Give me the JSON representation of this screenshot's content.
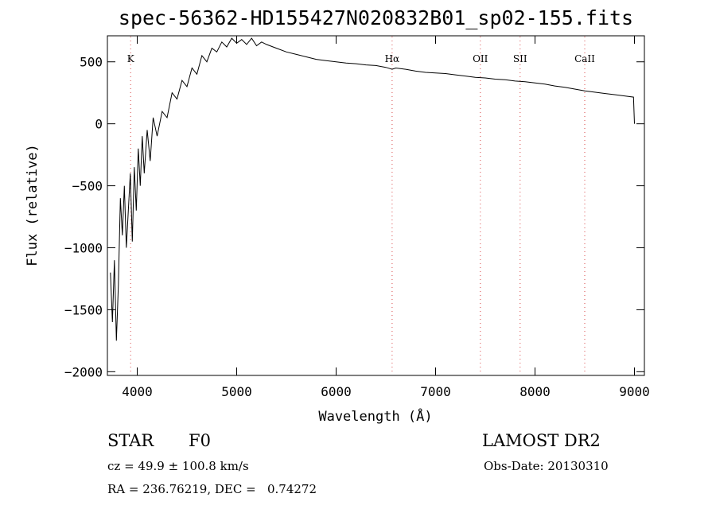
{
  "chart_data": {
    "type": "line",
    "title": "spec-56362-HD155427N020832B01_sp02-155.fits",
    "xlabel": "Wavelength (Å)",
    "ylabel": "Flux (relative)",
    "xlim": [
      3700,
      9100
    ],
    "ylim": [
      -2030,
      710
    ],
    "x_ticks": [
      4000,
      5000,
      6000,
      7000,
      8000,
      9000
    ],
    "y_ticks": [
      -2000,
      -1500,
      -1000,
      -500,
      0,
      500
    ],
    "grid": false,
    "series": [
      {
        "x": [
          3730,
          3750,
          3770,
          3790,
          3810,
          3830,
          3850,
          3870,
          3890,
          3910,
          3930,
          3950,
          3970,
          3990,
          4010,
          4030,
          4050,
          4070,
          4100,
          4130,
          4160,
          4200,
          4250,
          4300,
          4350,
          4400,
          4450,
          4500,
          4550,
          4600,
          4650,
          4700,
          4750,
          4800,
          4850,
          4900,
          4950,
          5000,
          5050,
          5100,
          5150,
          5200,
          5250,
          5300,
          5400,
          5500,
          5600,
          5700,
          5800,
          5900,
          6000,
          6100,
          6200,
          6300,
          6400,
          6500,
          6563,
          6600,
          6700,
          6800,
          6900,
          7000,
          7100,
          7200,
          7300,
          7400,
          7500,
          7600,
          7700,
          7800,
          7900,
          8000,
          8100,
          8200,
          8300,
          8400,
          8500,
          8600,
          8700,
          8800,
          8900,
          8990,
          9000
        ],
        "values": [
          -1200,
          -1600,
          -1100,
          -1750,
          -1300,
          -600,
          -900,
          -500,
          -1000,
          -700,
          -400,
          -950,
          -350,
          -700,
          -200,
          -500,
          -100,
          -400,
          -50,
          -300,
          50,
          -100,
          100,
          50,
          250,
          200,
          350,
          300,
          450,
          400,
          550,
          500,
          610,
          580,
          660,
          620,
          690,
          650,
          680,
          640,
          690,
          630,
          660,
          640,
          610,
          580,
          560,
          540,
          520,
          510,
          500,
          490,
          485,
          475,
          470,
          455,
          440,
          450,
          440,
          425,
          415,
          410,
          405,
          395,
          385,
          375,
          370,
          360,
          355,
          345,
          340,
          330,
          320,
          305,
          295,
          280,
          265,
          255,
          245,
          235,
          225,
          215,
          0
        ]
      }
    ],
    "line_markers": [
      {
        "label": "K",
        "x": 3934
      },
      {
        "label": "Hα",
        "x": 6563
      },
      {
        "label": "OII",
        "x": 7450
      },
      {
        "label": "SII",
        "x": 7850
      },
      {
        "label": "CaII",
        "x": 8500
      }
    ],
    "marker_color": "#e06666"
  },
  "info": {
    "object_type": "STAR",
    "subclass": "F0",
    "survey": "LAMOST DR2",
    "cz": "cz = 49.9 ± 100.8 km/s",
    "obs_date": "Obs-Date: 20130310",
    "coords": "RA = 236.76219, DEC =   0.74272"
  }
}
